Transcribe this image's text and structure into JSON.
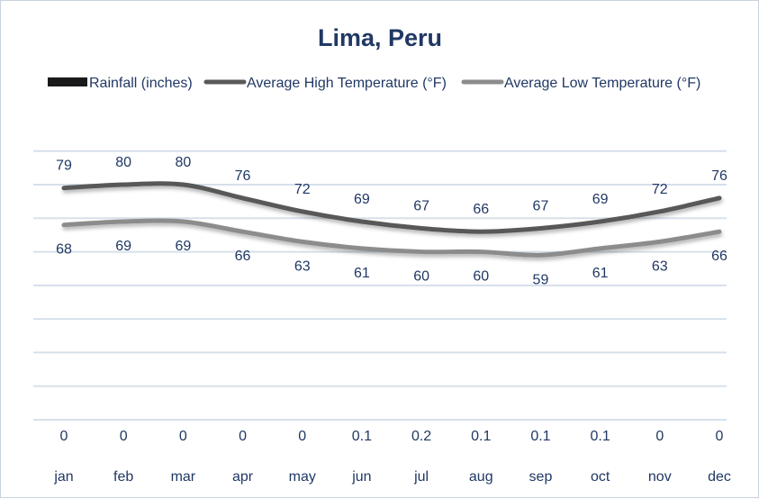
{
  "chart_data": {
    "type": "line",
    "title": "Lima, Peru",
    "categories": [
      "jan",
      "feb",
      "mar",
      "apr",
      "may",
      "jun",
      "jul",
      "aug",
      "sep",
      "oct",
      "nov",
      "dec"
    ],
    "series": [
      {
        "name": "Rainfall (inches)",
        "kind": "bar",
        "color": "#1a1a1a",
        "values": [
          0,
          0,
          0,
          0,
          0,
          0.1,
          0.2,
          0.1,
          0.1,
          0.1,
          0,
          0
        ]
      },
      {
        "name": "Average High Temperature (°F)",
        "kind": "line",
        "color": "#595959",
        "values": [
          79,
          80,
          80,
          76,
          72,
          69,
          67,
          66,
          67,
          69,
          72,
          76
        ]
      },
      {
        "name": "Average Low Temperature (°F)",
        "kind": "line",
        "color": "#8c8c8c",
        "values": [
          68,
          69,
          69,
          66,
          63,
          61,
          60,
          60,
          59,
          61,
          63,
          66
        ]
      }
    ],
    "ylim": [
      10,
      90
    ],
    "grid": true,
    "legend": "top",
    "text_color": "#203864",
    "grid_color": "#d6e0ec"
  }
}
